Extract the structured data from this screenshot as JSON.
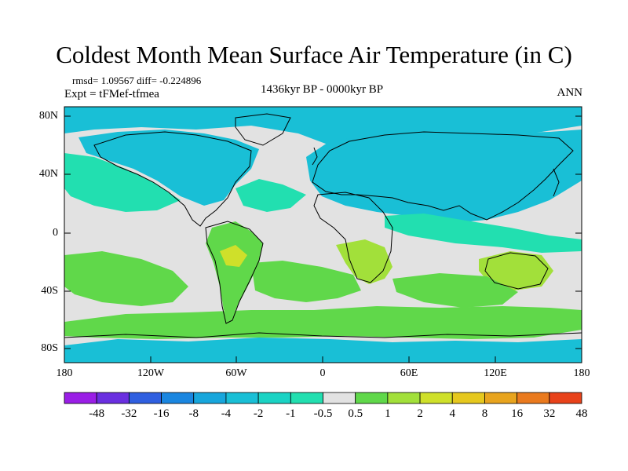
{
  "title": "Coldest Month Mean Surface Air Temperature (in C)",
  "stats": "rmsd= 1.09567 diff= -0.224896",
  "experiment": "Expt = tFMef-tfmea",
  "period": "1436kyr BP - 0000kyr BP",
  "season": "ANN",
  "lat_labels": [
    "80N",
    "40N",
    "0",
    "40S",
    "80S"
  ],
  "lon_labels": [
    "180",
    "120W",
    "60W",
    "0",
    "60E",
    "120E",
    "180"
  ],
  "colorbar": {
    "colors": [
      "#9a1ee6",
      "#6a2fe0",
      "#2f5fe0",
      "#1a86e0",
      "#17a6dc",
      "#19bfd6",
      "#1ad3c4",
      "#22dfb0",
      "#e2e2e2",
      "#60d84a",
      "#a2e03a",
      "#cfe02a",
      "#e6c81e",
      "#e8a41e",
      "#ea7a1e",
      "#e8421a"
    ],
    "labels": [
      "-48",
      "-32",
      "-16",
      "-8",
      "-4",
      "-2",
      "-1",
      "-0.5",
      "0.5",
      "1",
      "2",
      "4",
      "8",
      "16",
      "32",
      "48"
    ]
  },
  "map_colors": {
    "neutral": "#e2e2e2",
    "cool_light": "#22dfb0",
    "cool": "#19bfd6",
    "cool_deep": "#17a6dc",
    "warm_light": "#a2e03a",
    "warm": "#60d84a",
    "warm_strong": "#cfe02a",
    "coast": "#000000"
  }
}
